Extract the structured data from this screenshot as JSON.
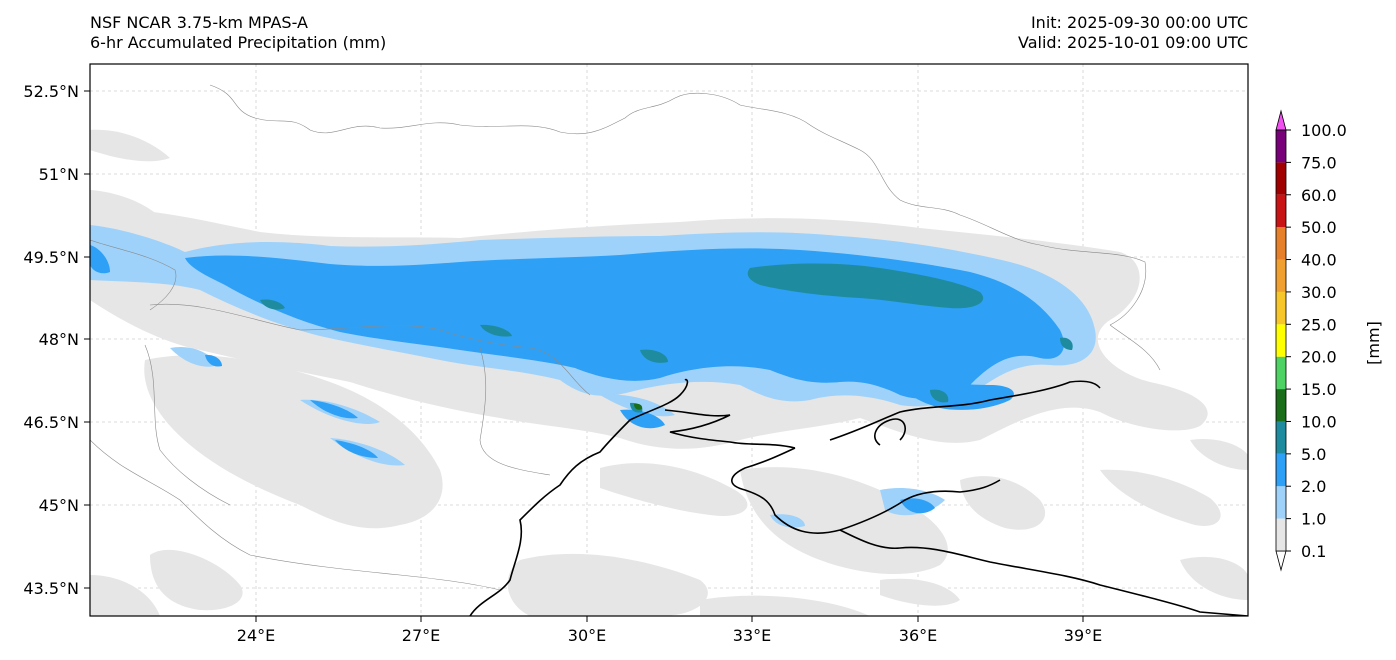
{
  "header": {
    "model": "NSF NCAR 3.75-km MPAS-A",
    "field": "6-hr Accumulated Precipitation (mm)",
    "init": "Init: 2025-09-30 00:00 UTC",
    "valid": "Valid: 2025-10-01 09:00 UTC"
  },
  "map": {
    "lon_range": [
      21,
      42
    ],
    "lat_range": [
      42.8,
      52.9
    ],
    "lon_ticks": [
      "24°E",
      "27°E",
      "30°E",
      "33°E",
      "36°E",
      "39°E"
    ],
    "lat_ticks": [
      "52.5°N",
      "51°N",
      "49.5°N",
      "48°N",
      "46.5°N",
      "45°N",
      "43.5°N"
    ],
    "gridlines": true
  },
  "colorbar": {
    "unit_label": "[mm]",
    "levels": [
      "0.1",
      "1.0",
      "2.0",
      "5.0",
      "10.0",
      "15.0",
      "20.0",
      "25.0",
      "30.0",
      "40.0",
      "50.0",
      "60.0",
      "75.0",
      "100.0"
    ],
    "colors": [
      "#e6e6e6",
      "#9ed2fa",
      "#2ea0f5",
      "#1e8c9e",
      "#1a6e1a",
      "#4fd264",
      "#ffff00",
      "#f7c62b",
      "#f0a030",
      "#e6802a",
      "#c81414",
      "#a00000",
      "#780078",
      "#f050f0"
    ],
    "extend": "both"
  }
}
